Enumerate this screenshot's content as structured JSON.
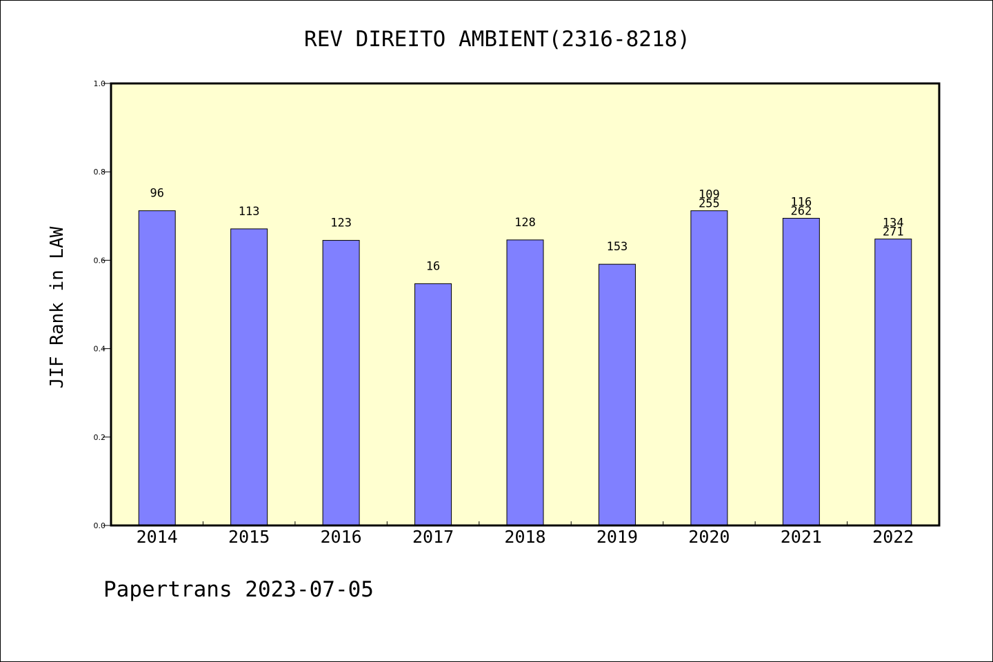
{
  "chart_data": {
    "type": "bar",
    "title": "REV DIREITO AMBIENT(2316-8218)",
    "xlabel": "",
    "ylabel": "JIF Rank in LAW",
    "ylim": [
      0.0,
      1.0
    ],
    "yticks": [
      "0.0",
      "0.2",
      "0.4",
      "0.6",
      "0.8",
      "1.0"
    ],
    "grid": false,
    "categories": [
      "2014",
      "2015",
      "2016",
      "2017",
      "2018",
      "2019",
      "2020",
      "2021",
      "2022"
    ],
    "values": [
      0.712,
      0.671,
      0.645,
      0.547,
      0.646,
      0.591,
      0.712,
      0.695,
      0.648
    ],
    "labels": [
      [
        "96"
      ],
      [
        "113"
      ],
      [
        "123"
      ],
      [
        "16"
      ],
      [
        "128"
      ],
      [
        "153"
      ],
      [
        "109",
        "255"
      ],
      [
        "116",
        "262"
      ],
      [
        "134",
        "271"
      ]
    ],
    "colors": {
      "plot_background": "#FFFFD0",
      "bar_fill": "#8080FF",
      "bar_stroke": "#000000",
      "axis": "#000000"
    }
  },
  "footer": "Papertrans 2023-07-05"
}
